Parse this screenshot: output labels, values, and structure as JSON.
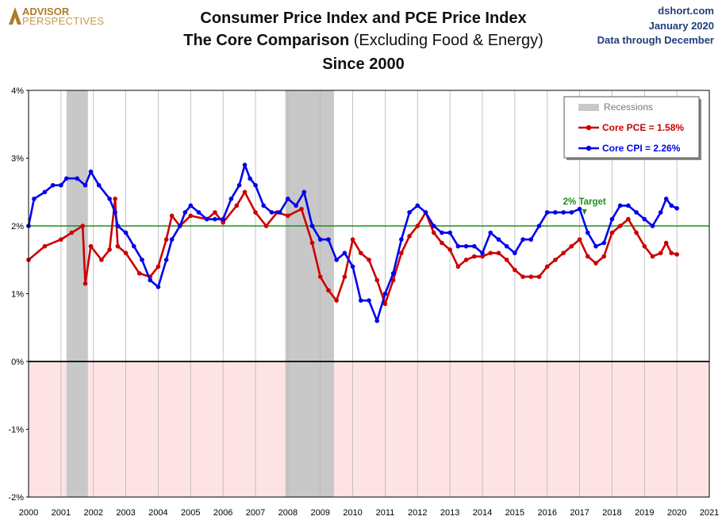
{
  "header": {
    "logo_line1": "ADVISOR",
    "logo_line2": "PERSPECTIVES",
    "title_line1": "Consumer Price Index and PCE Price Index",
    "title_line2_bold": "The Core Comparison",
    "title_line2_plain": "(Excluding Food & Energy)",
    "title_line3": "Since 2000",
    "source_site": "dshort.com",
    "source_date": "January 2020",
    "source_note": "Data through December"
  },
  "colors": {
    "pce": "#cc0000",
    "cpi": "#0000ee",
    "target": "#1a8f1a",
    "recession": "#c8c8c8",
    "negative_zone": "#fde3e3"
  },
  "chart_data": {
    "type": "line",
    "title": "Consumer Price Index and PCE Price Index — The Core Comparison (Excluding Food & Energy) — Since 2000",
    "xlabel": "",
    "ylabel": "",
    "xlim": [
      2000,
      2021
    ],
    "ylim": [
      -2,
      4
    ],
    "x_ticks": [
      "2000",
      "2001",
      "2002",
      "2003",
      "2004",
      "2005",
      "2006",
      "2007",
      "2008",
      "2009",
      "2010",
      "2011",
      "2012",
      "2013",
      "2014",
      "2015",
      "2016",
      "2017",
      "2018",
      "2019",
      "2020",
      "2021"
    ],
    "y_ticks": [
      {
        "value": 4,
        "label": "4%"
      },
      {
        "value": 3,
        "label": "3%"
      },
      {
        "value": 2,
        "label": "2%"
      },
      {
        "value": 1,
        "label": "1%"
      },
      {
        "value": 0,
        "label": "0%"
      },
      {
        "value": -1,
        "label": "-1%"
      },
      {
        "value": -2,
        "label": "-2%"
      }
    ],
    "target_line": {
      "value": 2,
      "label": "2% Target"
    },
    "recessions": [
      {
        "start": 2001.17,
        "end": 2001.83
      },
      {
        "start": 2007.92,
        "end": 2009.42
      }
    ],
    "legend": {
      "position": "top-right",
      "recession_label": "Recessions",
      "pce_label": "Core PCE = 1.58%",
      "cpi_label": "Core CPI = 2.26%"
    },
    "series": [
      {
        "name": "Core PCE",
        "color": "#cc0000",
        "points": [
          [
            2000.0,
            1.5
          ],
          [
            2000.5,
            1.7
          ],
          [
            2001.0,
            1.8
          ],
          [
            2001.33,
            1.9
          ],
          [
            2001.67,
            2.0
          ],
          [
            2001.75,
            1.15
          ],
          [
            2001.92,
            1.7
          ],
          [
            2002.25,
            1.5
          ],
          [
            2002.5,
            1.65
          ],
          [
            2002.67,
            2.4
          ],
          [
            2002.75,
            1.7
          ],
          [
            2003.0,
            1.6
          ],
          [
            2003.42,
            1.3
          ],
          [
            2003.75,
            1.25
          ],
          [
            2004.0,
            1.4
          ],
          [
            2004.25,
            1.8
          ],
          [
            2004.42,
            2.15
          ],
          [
            2004.67,
            2.0
          ],
          [
            2005.0,
            2.15
          ],
          [
            2005.5,
            2.1
          ],
          [
            2005.75,
            2.2
          ],
          [
            2006.0,
            2.05
          ],
          [
            2006.42,
            2.3
          ],
          [
            2006.67,
            2.5
          ],
          [
            2007.0,
            2.2
          ],
          [
            2007.33,
            2.0
          ],
          [
            2007.67,
            2.2
          ],
          [
            2008.0,
            2.15
          ],
          [
            2008.42,
            2.25
          ],
          [
            2008.75,
            1.75
          ],
          [
            2009.0,
            1.25
          ],
          [
            2009.25,
            1.05
          ],
          [
            2009.5,
            0.9
          ],
          [
            2009.75,
            1.25
          ],
          [
            2010.0,
            1.8
          ],
          [
            2010.25,
            1.6
          ],
          [
            2010.5,
            1.5
          ],
          [
            2010.75,
            1.2
          ],
          [
            2011.0,
            0.85
          ],
          [
            2011.25,
            1.2
          ],
          [
            2011.5,
            1.6
          ],
          [
            2011.75,
            1.85
          ],
          [
            2012.0,
            2.0
          ],
          [
            2012.25,
            2.2
          ],
          [
            2012.5,
            1.9
          ],
          [
            2012.75,
            1.75
          ],
          [
            2013.0,
            1.65
          ],
          [
            2013.25,
            1.4
          ],
          [
            2013.5,
            1.5
          ],
          [
            2013.75,
            1.55
          ],
          [
            2014.0,
            1.55
          ],
          [
            2014.25,
            1.6
          ],
          [
            2014.5,
            1.6
          ],
          [
            2014.75,
            1.5
          ],
          [
            2015.0,
            1.35
          ],
          [
            2015.25,
            1.25
          ],
          [
            2015.5,
            1.25
          ],
          [
            2015.75,
            1.25
          ],
          [
            2016.0,
            1.4
          ],
          [
            2016.25,
            1.5
          ],
          [
            2016.5,
            1.6
          ],
          [
            2016.75,
            1.7
          ],
          [
            2017.0,
            1.8
          ],
          [
            2017.25,
            1.55
          ],
          [
            2017.5,
            1.45
          ],
          [
            2017.75,
            1.55
          ],
          [
            2018.0,
            1.9
          ],
          [
            2018.25,
            2.0
          ],
          [
            2018.5,
            2.1
          ],
          [
            2018.75,
            1.9
          ],
          [
            2019.0,
            1.7
          ],
          [
            2019.25,
            1.55
          ],
          [
            2019.5,
            1.6
          ],
          [
            2019.67,
            1.75
          ],
          [
            2019.83,
            1.6
          ],
          [
            2020.0,
            1.58
          ]
        ]
      },
      {
        "name": "Core CPI",
        "color": "#0000ee",
        "points": [
          [
            2000.0,
            2.0
          ],
          [
            2000.17,
            2.4
          ],
          [
            2000.5,
            2.5
          ],
          [
            2000.75,
            2.6
          ],
          [
            2001.0,
            2.6
          ],
          [
            2001.17,
            2.7
          ],
          [
            2001.5,
            2.7
          ],
          [
            2001.75,
            2.6
          ],
          [
            2001.92,
            2.8
          ],
          [
            2002.17,
            2.6
          ],
          [
            2002.5,
            2.4
          ],
          [
            2002.67,
            2.2
          ],
          [
            2002.75,
            2.0
          ],
          [
            2003.0,
            1.9
          ],
          [
            2003.25,
            1.7
          ],
          [
            2003.5,
            1.5
          ],
          [
            2003.75,
            1.2
          ],
          [
            2004.0,
            1.1
          ],
          [
            2004.25,
            1.5
          ],
          [
            2004.42,
            1.8
          ],
          [
            2004.67,
            2.0
          ],
          [
            2004.83,
            2.2
          ],
          [
            2005.0,
            2.3
          ],
          [
            2005.25,
            2.2
          ],
          [
            2005.5,
            2.1
          ],
          [
            2005.75,
            2.1
          ],
          [
            2006.0,
            2.1
          ],
          [
            2006.25,
            2.4
          ],
          [
            2006.5,
            2.6
          ],
          [
            2006.67,
            2.9
          ],
          [
            2006.83,
            2.7
          ],
          [
            2007.0,
            2.6
          ],
          [
            2007.25,
            2.3
          ],
          [
            2007.5,
            2.2
          ],
          [
            2007.75,
            2.2
          ],
          [
            2008.0,
            2.4
          ],
          [
            2008.25,
            2.3
          ],
          [
            2008.5,
            2.5
          ],
          [
            2008.75,
            2.0
          ],
          [
            2009.0,
            1.8
          ],
          [
            2009.25,
            1.8
          ],
          [
            2009.5,
            1.5
          ],
          [
            2009.75,
            1.6
          ],
          [
            2010.0,
            1.4
          ],
          [
            2010.25,
            0.9
          ],
          [
            2010.5,
            0.9
          ],
          [
            2010.75,
            0.6
          ],
          [
            2011.0,
            1.0
          ],
          [
            2011.25,
            1.3
          ],
          [
            2011.5,
            1.8
          ],
          [
            2011.75,
            2.2
          ],
          [
            2012.0,
            2.3
          ],
          [
            2012.25,
            2.2
          ],
          [
            2012.5,
            2.0
          ],
          [
            2012.75,
            1.9
          ],
          [
            2013.0,
            1.9
          ],
          [
            2013.25,
            1.7
          ],
          [
            2013.5,
            1.7
          ],
          [
            2013.75,
            1.7
          ],
          [
            2014.0,
            1.6
          ],
          [
            2014.25,
            1.9
          ],
          [
            2014.5,
            1.8
          ],
          [
            2014.75,
            1.7
          ],
          [
            2015.0,
            1.6
          ],
          [
            2015.25,
            1.8
          ],
          [
            2015.5,
            1.8
          ],
          [
            2015.75,
            2.0
          ],
          [
            2016.0,
            2.2
          ],
          [
            2016.25,
            2.2
          ],
          [
            2016.5,
            2.2
          ],
          [
            2016.75,
            2.2
          ],
          [
            2017.0,
            2.25
          ],
          [
            2017.25,
            1.9
          ],
          [
            2017.5,
            1.7
          ],
          [
            2017.75,
            1.75
          ],
          [
            2018.0,
            2.1
          ],
          [
            2018.25,
            2.3
          ],
          [
            2018.5,
            2.3
          ],
          [
            2018.75,
            2.2
          ],
          [
            2019.0,
            2.1
          ],
          [
            2019.25,
            2.0
          ],
          [
            2019.5,
            2.2
          ],
          [
            2019.67,
            2.4
          ],
          [
            2019.83,
            2.3
          ],
          [
            2020.0,
            2.26
          ]
        ]
      }
    ]
  }
}
